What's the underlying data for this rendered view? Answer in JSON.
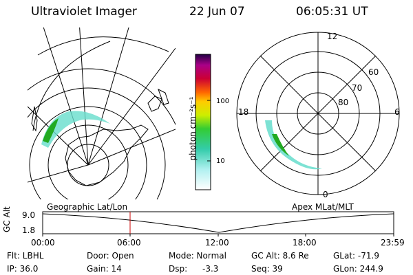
{
  "header": {
    "title": "Ultraviolet Imager",
    "date": "22 Jun 07",
    "time": "06:05:31 UT"
  },
  "colorbar": {
    "unit_label": "photon cm⁻²s⁻¹",
    "ticks": [
      "100",
      "10"
    ]
  },
  "polar_plot": {
    "hour_labels": [
      "12",
      "18",
      "6",
      "0"
    ],
    "lat_labels": [
      "60",
      "70",
      "80"
    ]
  },
  "panel_labels": {
    "left": "Geographic Lat/Lon",
    "right": "Apex MLat/MLT"
  },
  "altitude_plot": {
    "ylabel": "GC Alt",
    "yticks": [
      "9.0",
      "1.8"
    ],
    "xticks": [
      "00:00",
      "06:00",
      "12:00",
      "18:00",
      "23:59"
    ],
    "marker_time": "06:05"
  },
  "status": {
    "flt": "Flt: LBHL",
    "door": "Door: Open",
    "mode": "Mode: Normal",
    "gc_alt": "GC Alt: 8.6 Re",
    "glat": "GLat: -71.9",
    "ip": "IP: 36.0",
    "gain": "Gain: 14",
    "dsp_label": "Dsp:",
    "dsp_value": "-3.3",
    "seq": "Seq: 39",
    "glon": "GLon: 244.9"
  },
  "colors": {
    "marker": "#cc0000",
    "aurora_bright": "#22aa22",
    "aurora_dim": "#66ddcc"
  }
}
